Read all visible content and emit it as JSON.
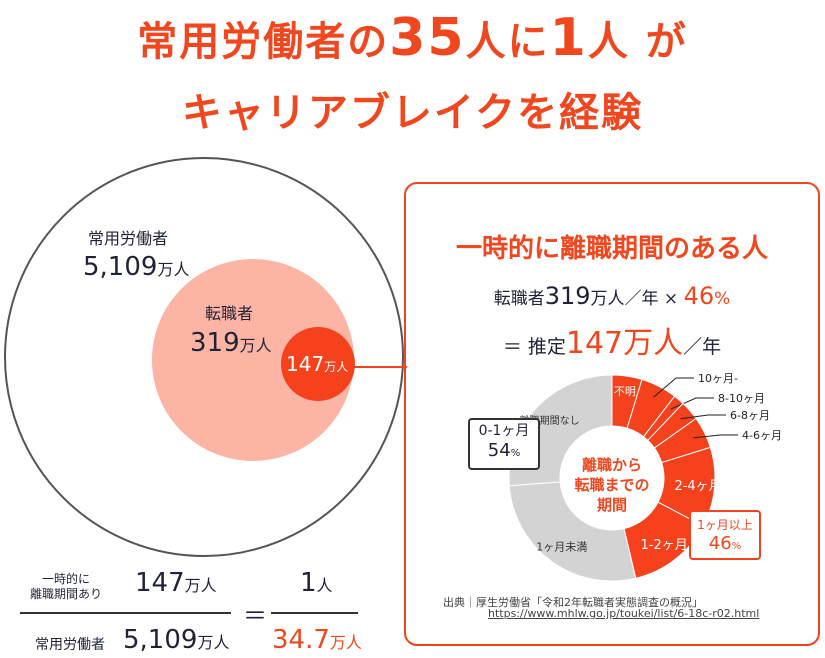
{
  "title": {
    "line1_a": "常用労働者の",
    "line1_b": "35",
    "line1_c": "人に",
    "line1_d": "1",
    "line1_e": "人 が",
    "line2": "キャリアブレイクを経験"
  },
  "circles": {
    "workers_label": "常用労働者",
    "workers_value": "5,109",
    "workers_unit": "万人",
    "changers_label": "転職者",
    "changers_value": "319",
    "changers_unit": "万人",
    "break_value": "147",
    "break_unit": "万人"
  },
  "panel": {
    "heading": "一時的に離職期間のある人",
    "formula1_a": "転職者",
    "formula1_b": "319",
    "formula1_c": "万人／年 × ",
    "formula1_d": "46",
    "formula1_e": "%",
    "formula2_a": "＝ 推定",
    "formula2_b": "147万人",
    "formula2_c": "／年",
    "source": "出典｜厚生労働省「令和2年転職者実態調査の概況」",
    "source_url": "https://www.mhlw.go.jp/toukei/list/6-18c-r02.html"
  },
  "chart_data": {
    "type": "pie",
    "title": "離職から転職までの期間",
    "center_label": [
      "離職から",
      "転職までの",
      "期間"
    ],
    "segments": [
      {
        "name": "不明",
        "value": 4.7,
        "group": "over"
      },
      {
        "name": "10ヶ月-",
        "value": 5.7,
        "group": "over"
      },
      {
        "name": "8-10ヶ月",
        "value": 1.7,
        "group": "over"
      },
      {
        "name": "6-8ヶ月",
        "value": 3.1,
        "group": "over"
      },
      {
        "name": "4-6ヶ月",
        "value": 5.0,
        "group": "over"
      },
      {
        "name": "2-4ヶ月",
        "value": 12.5,
        "group": "over"
      },
      {
        "name": "1-2ヶ月",
        "value": 13.6,
        "group": "over"
      },
      {
        "name": "1ヶ月未満",
        "value": 27.5,
        "group": "under"
      },
      {
        "name": "離職期間なし",
        "value": 26.2,
        "group": "under"
      }
    ],
    "callouts": [
      {
        "label": "0-1ヶ月",
        "value": "54",
        "unit": "%"
      },
      {
        "label": "1ヶ月以上",
        "value": "46",
        "unit": "%"
      }
    ],
    "colors": {
      "over": "#f5411c",
      "under": "#d3d3d3"
    }
  },
  "equation": {
    "num_label_1": "一時的に",
    "num_label_2": "離職期間あり",
    "num_value": "147",
    "num_unit": "万人",
    "den_label": "常用労働者",
    "den_value": "5,109",
    "den_unit": "万人",
    "equals": "＝",
    "r_num_value": "1",
    "r_num_unit": "人",
    "r_den_value": "34.7",
    "r_den_unit": "万人"
  }
}
